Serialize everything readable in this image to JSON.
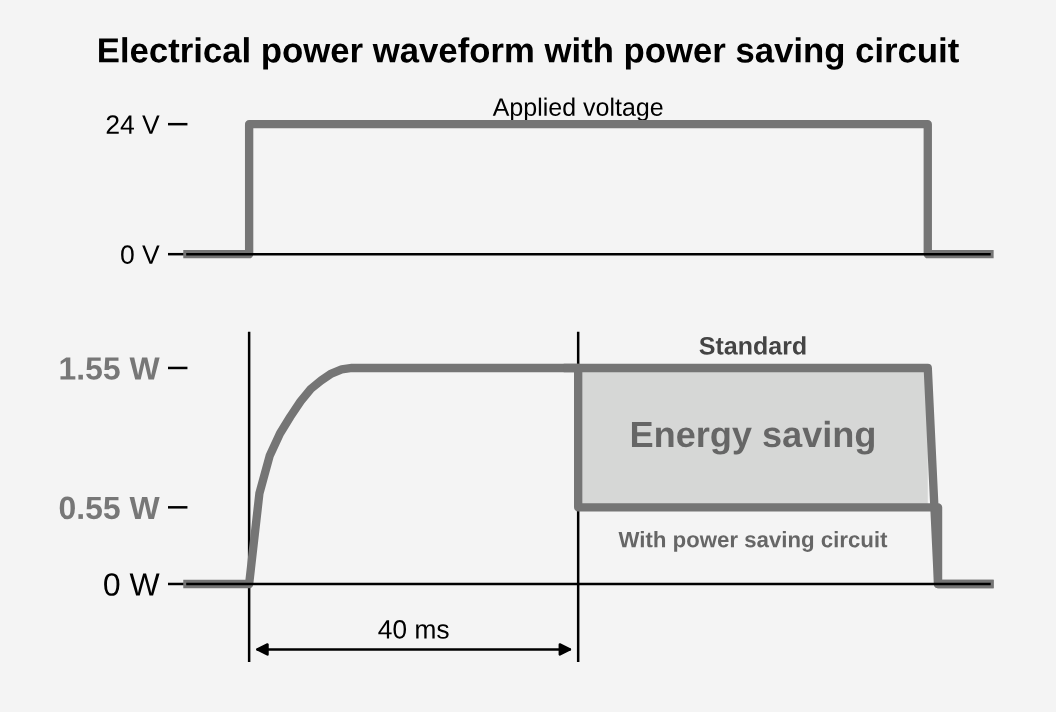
{
  "chart_data": [
    {
      "type": "step",
      "title": "Electrical power waveform with power saving circuit",
      "ylim": [
        0,
        24
      ],
      "yticks": [
        {
          "value": 24,
          "label": "24 V"
        },
        {
          "value": 0,
          "label": "0 V"
        }
      ],
      "tick_labels": "y",
      "grid": false,
      "categories": [
        null,
        null,
        null,
        null,
        null,
        null,
        null,
        null,
        null,
        null,
        null,
        null,
        null,
        null,
        null,
        null,
        null,
        null,
        null,
        null,
        null,
        null,
        null,
        null,
        null,
        null,
        null,
        null,
        null,
        null,
        null,
        null,
        null,
        null,
        null,
        null,
        null,
        null,
        null,
        null
      ],
      "series": [
        {
          "name": "Applied voltage",
          "color": "#757575",
          "values": [
            0,
            0,
            0,
            24,
            24,
            24,
            24,
            24,
            24,
            24,
            24,
            24,
            24,
            24,
            24,
            24,
            24,
            24,
            24,
            24,
            24,
            24,
            24,
            24,
            24,
            24,
            24,
            24,
            24,
            24,
            24,
            24,
            24,
            24,
            24,
            24,
            0,
            0,
            0,
            0
          ]
        }
      ],
      "ref_lines": [
        {
          "axis": "y",
          "value": 0,
          "color": "#000000"
        }
      ]
    },
    {
      "type": "line",
      "ylim": [
        0,
        1.55
      ],
      "yticks": [
        {
          "value": 1.55,
          "label": "1.55 W"
        },
        {
          "value": 0.55,
          "label": "0.55 W"
        },
        {
          "value": 0,
          "label": "0 W"
        }
      ],
      "tick_labels": "y",
      "grid": false,
      "categories": [
        null,
        null,
        null,
        null,
        null,
        null,
        null,
        null,
        null,
        null,
        null,
        null,
        null,
        null,
        null,
        null,
        null,
        null,
        null,
        null,
        null,
        null,
        null,
        null,
        null,
        null,
        null,
        null,
        null,
        null,
        null,
        null,
        null,
        null,
        null,
        null,
        null,
        null,
        null,
        null,
        null,
        null,
        null,
        null,
        null,
        null,
        null,
        null,
        null,
        null,
        null,
        null,
        null,
        null,
        null,
        null,
        null,
        null,
        null,
        null,
        null,
        null,
        null,
        null,
        null,
        null,
        null,
        null,
        null,
        null,
        null,
        null,
        null,
        null,
        null,
        null,
        null,
        null,
        null
      ],
      "series": [
        {
          "name": "Standard",
          "type": "line",
          "color": "#757575",
          "values": [
            0,
            0,
            0,
            0,
            0,
            0,
            0,
            0.65,
            0.92,
            1.08,
            1.2,
            1.31,
            1.4,
            1.46,
            1.51,
            1.54,
            1.55,
            1.55,
            1.55,
            1.55,
            1.55,
            1.55,
            1.55,
            1.55,
            1.55,
            1.55,
            1.55,
            1.55,
            1.55,
            1.55,
            1.55,
            1.55,
            1.55,
            1.55,
            1.55,
            1.55,
            1.55,
            1.55,
            1.55,
            1.55,
            1.55,
            1.55,
            1.55,
            1.55,
            1.55,
            1.55,
            1.55,
            1.55,
            1.55,
            1.55,
            1.55,
            1.55,
            1.55,
            1.55,
            1.55,
            1.55,
            1.55,
            1.55,
            1.55,
            1.55,
            1.55,
            1.55,
            1.55,
            1.55,
            1.55,
            1.55,
            1.55,
            1.55,
            1.55,
            1.55,
            1.55,
            1.55,
            1.55,
            0,
            0,
            0,
            0,
            0,
            0
          ]
        },
        {
          "name": "With power saving circuit",
          "type": "step",
          "color": "#757575",
          "values": [
            null,
            null,
            null,
            null,
            null,
            null,
            null,
            null,
            null,
            null,
            null,
            null,
            null,
            null,
            null,
            null,
            null,
            null,
            null,
            null,
            null,
            null,
            null,
            null,
            null,
            null,
            null,
            null,
            null,
            null,
            null,
            null,
            null,
            null,
            null,
            null,
            null,
            1.55,
            0.55,
            0.55,
            0.55,
            0.55,
            0.55,
            0.55,
            0.55,
            0.55,
            0.55,
            0.55,
            0.55,
            0.55,
            0.55,
            0.55,
            0.55,
            0.55,
            0.55,
            0.55,
            0.55,
            0.55,
            0.55,
            0.55,
            0.55,
            0.55,
            0.55,
            0.55,
            0.55,
            0.55,
            0.55,
            0.55,
            0.55,
            0.55,
            0.55,
            0.55,
            0.55,
            0,
            0,
            0,
            0,
            0,
            0
          ]
        }
      ],
      "annotations": [
        "Energy saving",
        "40 ms"
      ]
    }
  ]
}
